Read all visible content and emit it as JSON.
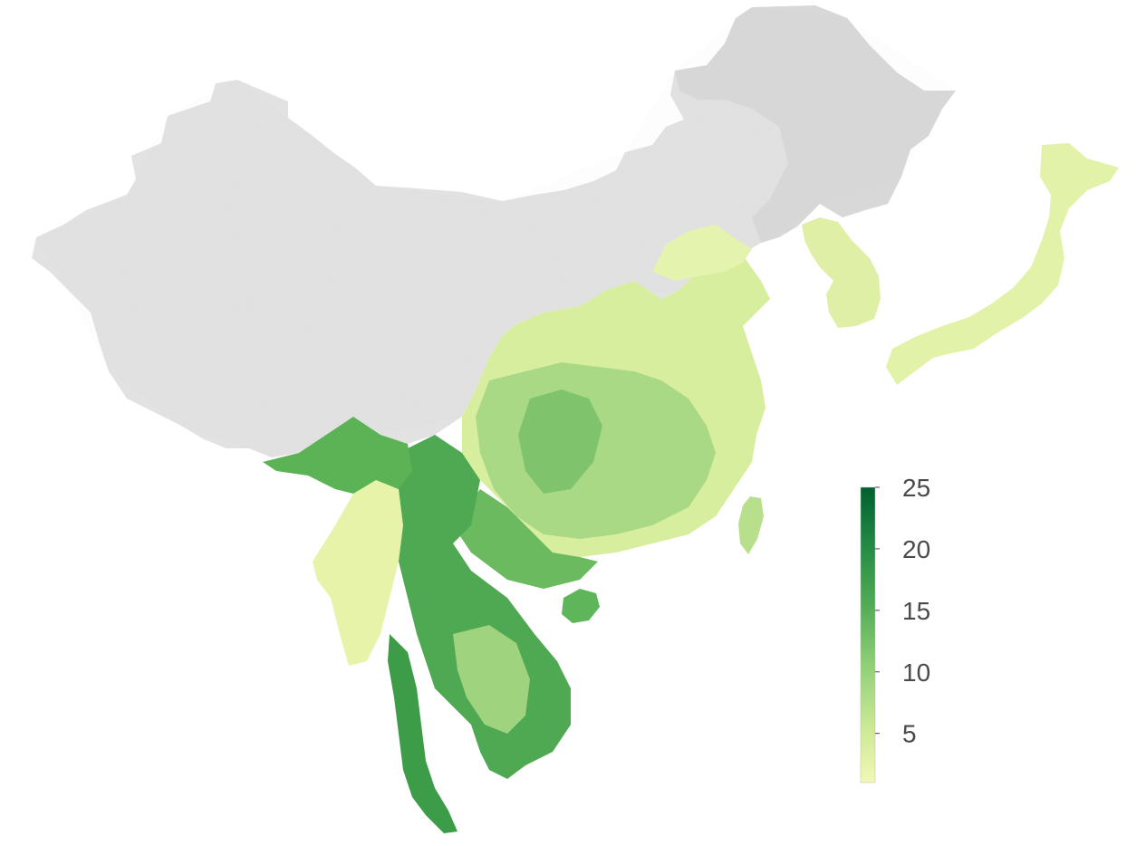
{
  "map": {
    "background_color": "#ffffff",
    "land_nodata_color": "#dedede",
    "region_names": [
      "northwest-highlands",
      "northeast-plains",
      "korean-peninsula",
      "japan-archipelago",
      "east-china",
      "south-china",
      "indochina",
      "myanmar-west-coast",
      "taiwan",
      "hainan"
    ]
  },
  "legend": {
    "type": "continuous-colorbar",
    "min": 1,
    "max": 25,
    "ticks": [
      {
        "value": 25,
        "label": "25"
      },
      {
        "value": 20,
        "label": "20"
      },
      {
        "value": 15,
        "label": "15"
      },
      {
        "value": 10,
        "label": "10"
      },
      {
        "value": 5,
        "label": "5"
      }
    ],
    "color_stops": [
      "#f2f8b4",
      "#c8e893",
      "#8fcf76",
      "#52ac55",
      "#238b45",
      "#00602f"
    ]
  }
}
